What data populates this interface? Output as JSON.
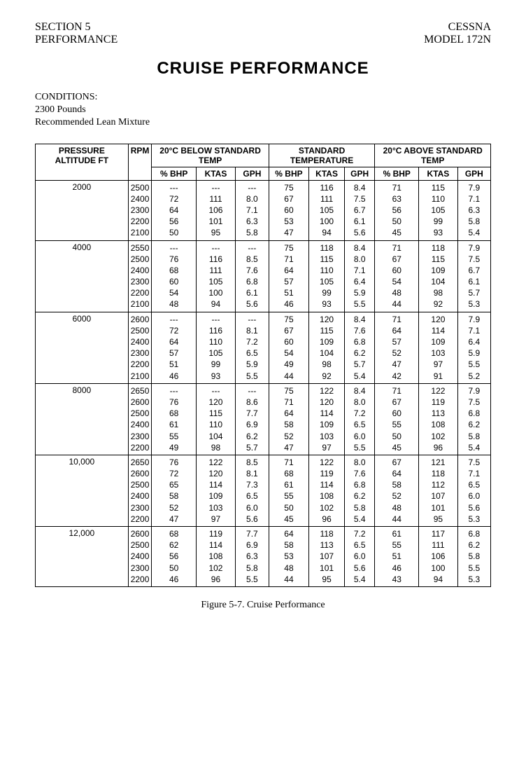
{
  "header": {
    "section": "SECTION 5",
    "section_sub": "PERFORMANCE",
    "brand": "CESSNA",
    "model": "MODEL 172N"
  },
  "title": "CRUISE PERFORMANCE",
  "conditions": {
    "label": "CONDITIONS:",
    "line1": "2300 Pounds",
    "line2": "Recommended Lean Mixture"
  },
  "table": {
    "head": {
      "pressure_alt": "PRESSURE ALTITUDE FT",
      "rpm": "RPM",
      "group_below": "20°C BELOW STANDARD TEMP",
      "group_std": "STANDARD TEMPERATURE",
      "group_above": "20°C ABOVE STANDARD TEMP",
      "pct_bhp": "% BHP",
      "ktas": "KTAS",
      "gph": "GPH"
    },
    "blocks": [
      {
        "alt": "2000",
        "rpm": [
          "2500",
          "2400",
          "2300",
          "2200",
          "2100"
        ],
        "below": {
          "bhp": [
            "---",
            "72",
            "64",
            "56",
            "50"
          ],
          "ktas": [
            "---",
            "111",
            "106",
            "101",
            "95"
          ],
          "gph": [
            "---",
            "8.0",
            "7.1",
            "6.3",
            "5.8"
          ]
        },
        "std": {
          "bhp": [
            "75",
            "67",
            "60",
            "53",
            "47"
          ],
          "ktas": [
            "116",
            "111",
            "105",
            "100",
            "94"
          ],
          "gph": [
            "8.4",
            "7.5",
            "6.7",
            "6.1",
            "5.6"
          ]
        },
        "above": {
          "bhp": [
            "71",
            "63",
            "56",
            "50",
            "45"
          ],
          "ktas": [
            "115",
            "110",
            "105",
            "99",
            "93"
          ],
          "gph": [
            "7.9",
            "7.1",
            "6.3",
            "5.8",
            "5.4"
          ]
        }
      },
      {
        "alt": "4000",
        "rpm": [
          "2550",
          "2500",
          "2400",
          "2300",
          "2200",
          "2100"
        ],
        "below": {
          "bhp": [
            "---",
            "76",
            "68",
            "60",
            "54",
            "48"
          ],
          "ktas": [
            "---",
            "116",
            "111",
            "105",
            "100",
            "94"
          ],
          "gph": [
            "---",
            "8.5",
            "7.6",
            "6.8",
            "6.1",
            "5.6"
          ]
        },
        "std": {
          "bhp": [
            "75",
            "71",
            "64",
            "57",
            "51",
            "46"
          ],
          "ktas": [
            "118",
            "115",
            "110",
            "105",
            "99",
            "93"
          ],
          "gph": [
            "8.4",
            "8.0",
            "7.1",
            "6.4",
            "5.9",
            "5.5"
          ]
        },
        "above": {
          "bhp": [
            "71",
            "67",
            "60",
            "54",
            "48",
            "44"
          ],
          "ktas": [
            "118",
            "115",
            "109",
            "104",
            "98",
            "92"
          ],
          "gph": [
            "7.9",
            "7.5",
            "6.7",
            "6.1",
            "5.7",
            "5.3"
          ]
        }
      },
      {
        "alt": "6000",
        "rpm": [
          "2600",
          "2500",
          "2400",
          "2300",
          "2200",
          "2100"
        ],
        "below": {
          "bhp": [
            "---",
            "72",
            "64",
            "57",
            "51",
            "46"
          ],
          "ktas": [
            "---",
            "116",
            "110",
            "105",
            "99",
            "93"
          ],
          "gph": [
            "---",
            "8.1",
            "7.2",
            "6.5",
            "5.9",
            "5.5"
          ]
        },
        "std": {
          "bhp": [
            "75",
            "67",
            "60",
            "54",
            "49",
            "44"
          ],
          "ktas": [
            "120",
            "115",
            "109",
            "104",
            "98",
            "92"
          ],
          "gph": [
            "8.4",
            "7.6",
            "6.8",
            "6.2",
            "5.7",
            "5.4"
          ]
        },
        "above": {
          "bhp": [
            "71",
            "64",
            "57",
            "52",
            "47",
            "42"
          ],
          "ktas": [
            "120",
            "114",
            "109",
            "103",
            "97",
            "91"
          ],
          "gph": [
            "7.9",
            "7.1",
            "6.4",
            "5.9",
            "5.5",
            "5.2"
          ]
        }
      },
      {
        "alt": "8000",
        "rpm": [
          "2650",
          "2600",
          "2500",
          "2400",
          "2300",
          "2200"
        ],
        "below": {
          "bhp": [
            "---",
            "76",
            "68",
            "61",
            "55",
            "49"
          ],
          "ktas": [
            "---",
            "120",
            "115",
            "110",
            "104",
            "98"
          ],
          "gph": [
            "---",
            "8.6",
            "7.7",
            "6.9",
            "6.2",
            "5.7"
          ]
        },
        "std": {
          "bhp": [
            "75",
            "71",
            "64",
            "58",
            "52",
            "47"
          ],
          "ktas": [
            "122",
            "120",
            "114",
            "109",
            "103",
            "97"
          ],
          "gph": [
            "8.4",
            "8.0",
            "7.2",
            "6.5",
            "6.0",
            "5.5"
          ]
        },
        "above": {
          "bhp": [
            "71",
            "67",
            "60",
            "55",
            "50",
            "45"
          ],
          "ktas": [
            "122",
            "119",
            "113",
            "108",
            "102",
            "96"
          ],
          "gph": [
            "7.9",
            "7.5",
            "6.8",
            "6.2",
            "5.8",
            "5.4"
          ]
        }
      },
      {
        "alt": "10,000",
        "rpm": [
          "2650",
          "2600",
          "2500",
          "2400",
          "2300",
          "2200"
        ],
        "below": {
          "bhp": [
            "76",
            "72",
            "65",
            "58",
            "52",
            "47"
          ],
          "ktas": [
            "122",
            "120",
            "114",
            "109",
            "103",
            "97"
          ],
          "gph": [
            "8.5",
            "8.1",
            "7.3",
            "6.5",
            "6.0",
            "5.6"
          ]
        },
        "std": {
          "bhp": [
            "71",
            "68",
            "61",
            "55",
            "50",
            "45"
          ],
          "ktas": [
            "122",
            "119",
            "114",
            "108",
            "102",
            "96"
          ],
          "gph": [
            "8.0",
            "7.6",
            "6.8",
            "6.2",
            "5.8",
            "5.4"
          ]
        },
        "above": {
          "bhp": [
            "67",
            "64",
            "58",
            "52",
            "48",
            "44"
          ],
          "ktas": [
            "121",
            "118",
            "112",
            "107",
            "101",
            "95"
          ],
          "gph": [
            "7.5",
            "7.1",
            "6.5",
            "6.0",
            "5.6",
            "5.3"
          ]
        }
      },
      {
        "alt": "12,000",
        "rpm": [
          "2600",
          "2500",
          "2400",
          "2300",
          "2200"
        ],
        "below": {
          "bhp": [
            "68",
            "62",
            "56",
            "50",
            "46"
          ],
          "ktas": [
            "119",
            "114",
            "108",
            "102",
            "96"
          ],
          "gph": [
            "7.7",
            "6.9",
            "6.3",
            "5.8",
            "5.5"
          ]
        },
        "std": {
          "bhp": [
            "64",
            "58",
            "53",
            "48",
            "44"
          ],
          "ktas": [
            "118",
            "113",
            "107",
            "101",
            "95"
          ],
          "gph": [
            "7.2",
            "6.5",
            "6.0",
            "5.6",
            "5.4"
          ]
        },
        "above": {
          "bhp": [
            "61",
            "55",
            "51",
            "46",
            "43"
          ],
          "ktas": [
            "117",
            "111",
            "106",
            "100",
            "94"
          ],
          "gph": [
            "6.8",
            "6.2",
            "5.8",
            "5.5",
            "5.3"
          ]
        }
      }
    ]
  },
  "caption": "Figure 5-7.  Cruise Performance"
}
